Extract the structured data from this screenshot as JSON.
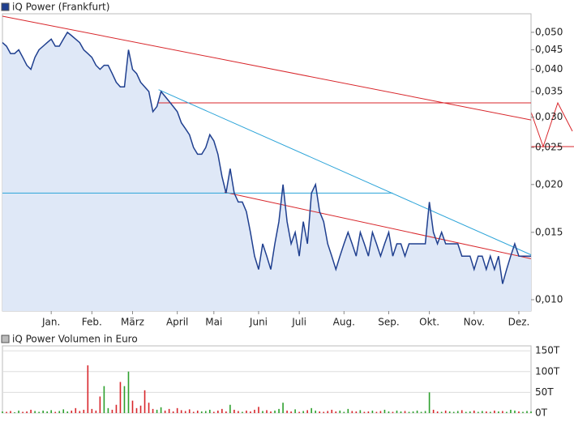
{
  "chart_data": [
    {
      "type": "line",
      "legend": "iQ Power (Frankfurt)",
      "log_scale": true,
      "color": "#1f3f8f",
      "fill": "#dfe8f7",
      "values": [
        0.047,
        0.046,
        0.044,
        0.044,
        0.045,
        0.043,
        0.041,
        0.04,
        0.043,
        0.045,
        0.046,
        0.047,
        0.048,
        0.046,
        0.046,
        0.048,
        0.05,
        0.049,
        0.048,
        0.047,
        0.045,
        0.044,
        0.043,
        0.041,
        0.04,
        0.041,
        0.041,
        0.039,
        0.037,
        0.036,
        0.036,
        0.045,
        0.04,
        0.039,
        0.037,
        0.036,
        0.035,
        0.031,
        0.032,
        0.035,
        0.034,
        0.033,
        0.032,
        0.031,
        0.029,
        0.028,
        0.027,
        0.025,
        0.024,
        0.024,
        0.025,
        0.027,
        0.026,
        0.024,
        0.021,
        0.019,
        0.022,
        0.019,
        0.018,
        0.018,
        0.017,
        0.015,
        0.013,
        0.012,
        0.014,
        0.013,
        0.012,
        0.014,
        0.016,
        0.02,
        0.016,
        0.014,
        0.015,
        0.013,
        0.016,
        0.014,
        0.019,
        0.02,
        0.017,
        0.016,
        0.014,
        0.013,
        0.012,
        0.013,
        0.014,
        0.015,
        0.014,
        0.013,
        0.015,
        0.014,
        0.013,
        0.015,
        0.014,
        0.013,
        0.014,
        0.015,
        0.013,
        0.014,
        0.014,
        0.013,
        0.014,
        0.014,
        0.014,
        0.014,
        0.014,
        0.018,
        0.015,
        0.014,
        0.015,
        0.014,
        0.014,
        0.014,
        0.014,
        0.013,
        0.013,
        0.013,
        0.012,
        0.013,
        0.013,
        0.012,
        0.013,
        0.012,
        0.013,
        0.011,
        0.012,
        0.013,
        0.014,
        0.013,
        0.013,
        0.013,
        0.013
      ],
      "xlim": [
        0,
        130
      ],
      "xticks": [
        {
          "value": 12,
          "label": "Jan."
        },
        {
          "value": 22,
          "label": "Feb."
        },
        {
          "value": 32,
          "label": "März"
        },
        {
          "value": 43,
          "label": "April"
        },
        {
          "value": 52,
          "label": "Mai"
        },
        {
          "value": 63,
          "label": "Juni"
        },
        {
          "value": 73,
          "label": "Juli"
        },
        {
          "value": 84,
          "label": "Aug."
        },
        {
          "value": 95,
          "label": "Sep."
        },
        {
          "value": 105,
          "label": "Okt."
        },
        {
          "value": 116,
          "label": "Nov."
        },
        {
          "value": 127,
          "label": "Dez."
        }
      ],
      "ylim": [
        0.00934,
        0.0559
      ],
      "yticks": [
        {
          "value": 0.01,
          "label": "0,010"
        },
        {
          "value": 0.015,
          "label": "0,015"
        },
        {
          "value": 0.02,
          "label": "0,020"
        },
        {
          "value": 0.025,
          "label": "0,025"
        },
        {
          "value": 0.03,
          "label": "0,030"
        },
        {
          "value": 0.035,
          "label": "0,035"
        },
        {
          "value": 0.04,
          "label": "0,040"
        },
        {
          "value": 0.045,
          "label": "0,045"
        },
        {
          "value": 0.05,
          "label": "0,050"
        }
      ],
      "trendlines": [
        {
          "color": "#d8262b",
          "points": [
            [
              0,
              0.0551
            ],
            [
              130,
              0.0295
            ]
          ]
        },
        {
          "color": "#d8262b",
          "points": [
            [
              54.6,
              0.0191
            ],
            [
              130,
              0.0128
            ]
          ]
        },
        {
          "color": "#d8262b",
          "points": [
            [
              38.4,
              0.0327
            ],
            [
              130,
              0.0327
            ]
          ]
        },
        {
          "color": "#2aa3d8",
          "points": [
            [
              38.4,
              0.0354
            ],
            [
              130,
              0.0131
            ]
          ]
        },
        {
          "color": "#2aa3d8",
          "points": [
            [
              0,
              0.019
            ],
            [
              96,
              0.019
            ]
          ]
        }
      ]
    },
    {
      "type": "volume",
      "legend": "iQ Power Volumen in Euro",
      "up_color": "#2da02d",
      "down_color": "#d8262b",
      "values": [
        4,
        3,
        5,
        2,
        6,
        3,
        4,
        8,
        5,
        3,
        6,
        4,
        7,
        3,
        5,
        9,
        4,
        6,
        12,
        5,
        8,
        115,
        10,
        6,
        40,
        65,
        12,
        8,
        20,
        75,
        65,
        100,
        30,
        12,
        18,
        55,
        25,
        10,
        8,
        14,
        6,
        10,
        4,
        12,
        7,
        5,
        9,
        3,
        6,
        4,
        5,
        8,
        3,
        6,
        10,
        4,
        20,
        8,
        5,
        3,
        6,
        4,
        8,
        15,
        5,
        7,
        4,
        6,
        10,
        25,
        6,
        4,
        9,
        3,
        5,
        7,
        12,
        6,
        4,
        3,
        5,
        8,
        4,
        6,
        3,
        10,
        5,
        4,
        7,
        3,
        4,
        6,
        3,
        5,
        8,
        4,
        3,
        6,
        4,
        5,
        3,
        4,
        6,
        3,
        5,
        50,
        8,
        4,
        3,
        6,
        4,
        3,
        5,
        7,
        3,
        4,
        6,
        3,
        5,
        4,
        3,
        6,
        4,
        5,
        3,
        8,
        6,
        4,
        3,
        5,
        4
      ],
      "xlim": [
        0,
        130
      ],
      "ylim": [
        0,
        162
      ],
      "yticks": [
        {
          "value": 0,
          "label": "0T"
        },
        {
          "value": 50,
          "label": "50T"
        },
        {
          "value": 100,
          "label": "100T"
        },
        {
          "value": 150,
          "label": "150T"
        }
      ]
    }
  ]
}
